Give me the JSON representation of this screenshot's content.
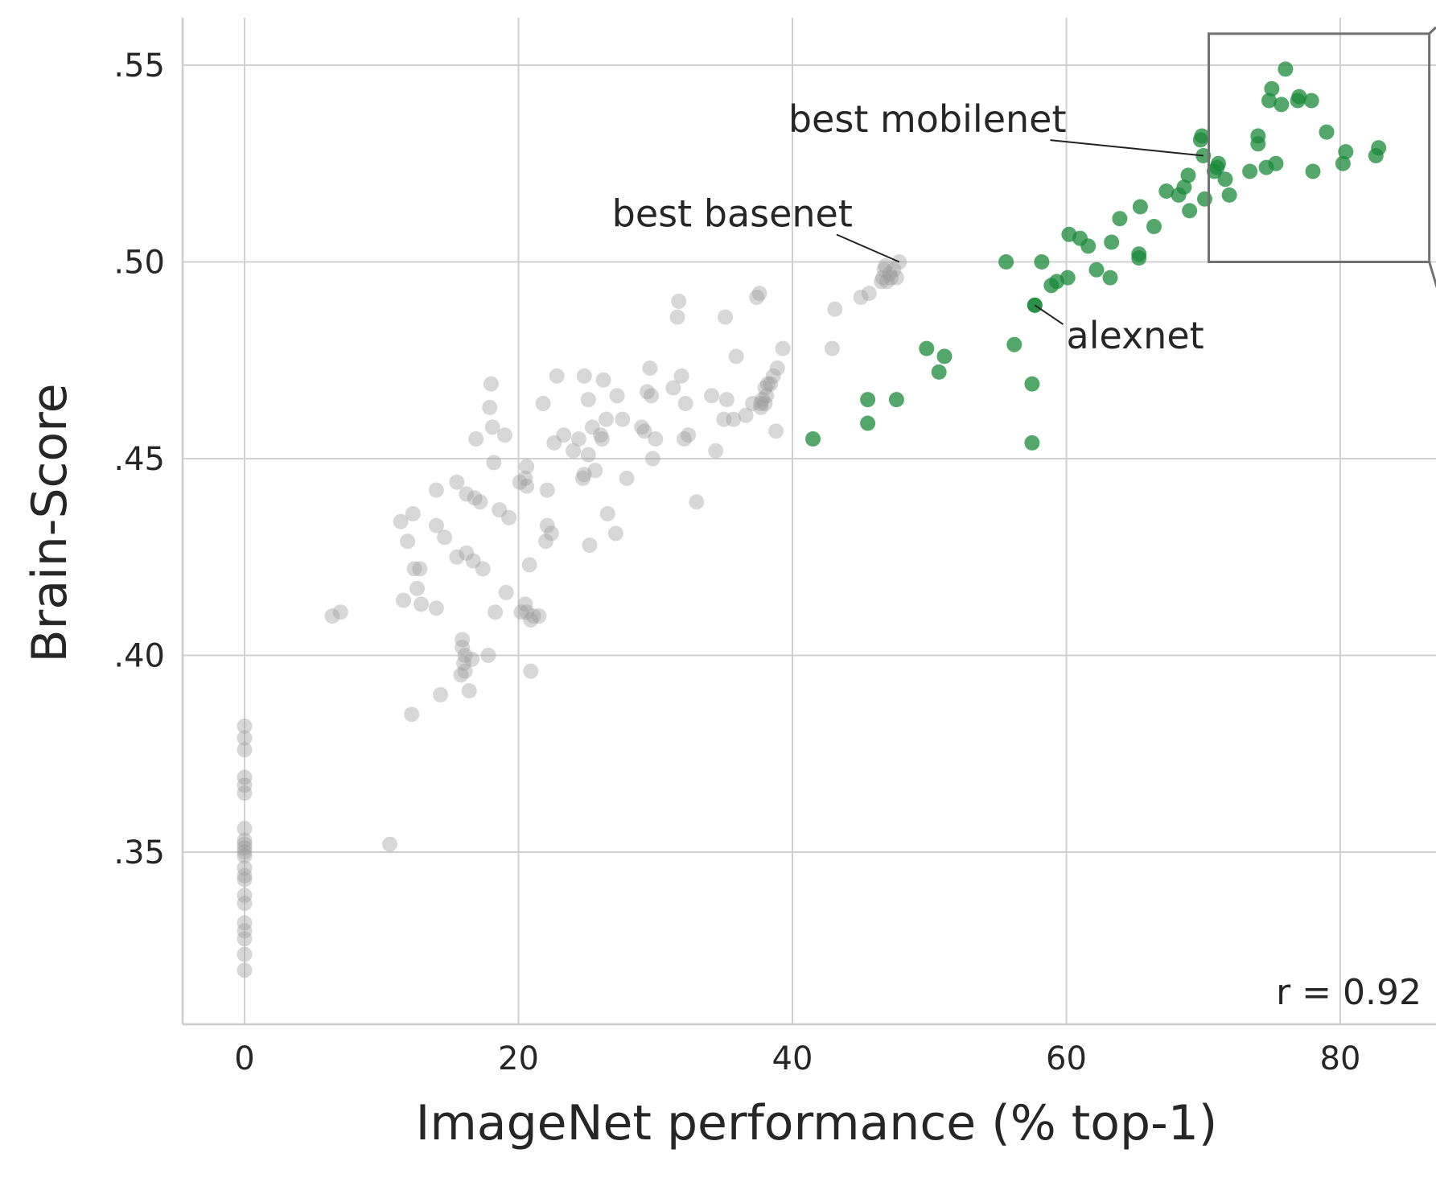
{
  "chart_data": {
    "type": "scatter",
    "xlabel": "ImageNet performance (% top-1)",
    "ylabel": "Brain-Score",
    "xlim": [
      -5,
      87
    ],
    "ylim": [
      0.306,
      0.562
    ],
    "xticks": [
      0,
      20,
      40,
      60,
      80
    ],
    "xtick_labels": [
      "0",
      "20",
      "40",
      "60",
      "80"
    ],
    "yticks": [
      0.35,
      0.4,
      0.45,
      0.5,
      0.55
    ],
    "ytick_labels": [
      ".35",
      ".40",
      ".45",
      ".50",
      ".55"
    ],
    "grid": true,
    "colors": {
      "gray_series": "#9a9a9a",
      "green_series": "#1a8a3a",
      "grid": "#d0d0d0",
      "zoom_box": "#707070"
    },
    "stat_label": "r = 0.92",
    "series": [
      {
        "color": "#9a9a9a",
        "opacity": 0.4,
        "points": [
          [
            0,
            0.382
          ],
          [
            0,
            0.379
          ],
          [
            0,
            0.376
          ],
          [
            0,
            0.369
          ],
          [
            0,
            0.367
          ],
          [
            0,
            0.365
          ],
          [
            0,
            0.356
          ],
          [
            0,
            0.353
          ],
          [
            0,
            0.352
          ],
          [
            0,
            0.351
          ],
          [
            0,
            0.35
          ],
          [
            0,
            0.349
          ],
          [
            0,
            0.346
          ],
          [
            0,
            0.344
          ],
          [
            0,
            0.343
          ],
          [
            0,
            0.339
          ],
          [
            0,
            0.337
          ],
          [
            0,
            0.332
          ],
          [
            0,
            0.33
          ],
          [
            0,
            0.328
          ],
          [
            0,
            0.324
          ],
          [
            0,
            0.32
          ],
          [
            6.4,
            0.41
          ],
          [
            7.0,
            0.411
          ],
          [
            10.6,
            0.352
          ],
          [
            11.4,
            0.434
          ],
          [
            11.6,
            0.414
          ],
          [
            11.9,
            0.429
          ],
          [
            12.2,
            0.385
          ],
          [
            12.3,
            0.436
          ],
          [
            12.4,
            0.422
          ],
          [
            12.6,
            0.417
          ],
          [
            12.8,
            0.422
          ],
          [
            12.9,
            0.413
          ],
          [
            14.0,
            0.412
          ],
          [
            14.0,
            0.442
          ],
          [
            14.0,
            0.433
          ],
          [
            14.3,
            0.39
          ],
          [
            14.6,
            0.43
          ],
          [
            15.5,
            0.425
          ],
          [
            15.5,
            0.444
          ],
          [
            15.8,
            0.395
          ],
          [
            15.9,
            0.404
          ],
          [
            15.9,
            0.402
          ],
          [
            16.0,
            0.398
          ],
          [
            16.1,
            0.396
          ],
          [
            16.1,
            0.4
          ],
          [
            16.2,
            0.426
          ],
          [
            16.2,
            0.441
          ],
          [
            16.4,
            0.391
          ],
          [
            16.6,
            0.399
          ],
          [
            16.7,
            0.424
          ],
          [
            16.8,
            0.44
          ],
          [
            16.9,
            0.455
          ],
          [
            17.2,
            0.439
          ],
          [
            17.4,
            0.422
          ],
          [
            17.8,
            0.4
          ],
          [
            17.9,
            0.463
          ],
          [
            18.0,
            0.469
          ],
          [
            18.1,
            0.458
          ],
          [
            18.2,
            0.449
          ],
          [
            18.3,
            0.411
          ],
          [
            18.6,
            0.437
          ],
          [
            19.0,
            0.456
          ],
          [
            19.1,
            0.416
          ],
          [
            19.3,
            0.435
          ],
          [
            20.1,
            0.444
          ],
          [
            20.2,
            0.411
          ],
          [
            20.5,
            0.445
          ],
          [
            20.5,
            0.413
          ],
          [
            20.6,
            0.448
          ],
          [
            20.6,
            0.411
          ],
          [
            20.6,
            0.443
          ],
          [
            20.8,
            0.423
          ],
          [
            20.9,
            0.409
          ],
          [
            20.9,
            0.396
          ],
          [
            21.1,
            0.41
          ],
          [
            21.5,
            0.41
          ],
          [
            21.8,
            0.464
          ],
          [
            22.0,
            0.429
          ],
          [
            22.1,
            0.433
          ],
          [
            22.1,
            0.442
          ],
          [
            22.4,
            0.431
          ],
          [
            22.6,
            0.454
          ],
          [
            22.8,
            0.471
          ],
          [
            23.3,
            0.456
          ],
          [
            24.0,
            0.452
          ],
          [
            24.4,
            0.455
          ],
          [
            24.7,
            0.445
          ],
          [
            24.8,
            0.446
          ],
          [
            24.8,
            0.471
          ],
          [
            25.1,
            0.451
          ],
          [
            25.1,
            0.465
          ],
          [
            25.2,
            0.428
          ],
          [
            25.4,
            0.458
          ],
          [
            25.6,
            0.447
          ],
          [
            26.0,
            0.456
          ],
          [
            26.1,
            0.455
          ],
          [
            26.2,
            0.47
          ],
          [
            26.4,
            0.46
          ],
          [
            26.5,
            0.436
          ],
          [
            27.1,
            0.431
          ],
          [
            27.2,
            0.466
          ],
          [
            27.6,
            0.46
          ],
          [
            27.9,
            0.445
          ],
          [
            29.0,
            0.458
          ],
          [
            29.2,
            0.457
          ],
          [
            29.4,
            0.467
          ],
          [
            29.6,
            0.473
          ],
          [
            29.7,
            0.466
          ],
          [
            29.8,
            0.45
          ],
          [
            30.0,
            0.455
          ],
          [
            31.3,
            0.468
          ],
          [
            31.6,
            0.486
          ],
          [
            31.7,
            0.49
          ],
          [
            31.9,
            0.471
          ],
          [
            32.1,
            0.455
          ],
          [
            32.2,
            0.464
          ],
          [
            32.4,
            0.456
          ],
          [
            33.0,
            0.439
          ],
          [
            34.1,
            0.466
          ],
          [
            34.4,
            0.452
          ],
          [
            35.0,
            0.46
          ],
          [
            35.1,
            0.486
          ],
          [
            35.2,
            0.465
          ],
          [
            35.7,
            0.46
          ],
          [
            35.9,
            0.476
          ],
          [
            36.6,
            0.461
          ],
          [
            37.1,
            0.464
          ],
          [
            37.4,
            0.491
          ],
          [
            37.6,
            0.492
          ],
          [
            37.7,
            0.463
          ],
          [
            37.7,
            0.464
          ],
          [
            37.8,
            0.465
          ],
          [
            38.0,
            0.464
          ],
          [
            38.0,
            0.468
          ],
          [
            38.1,
            0.466
          ],
          [
            38.2,
            0.469
          ],
          [
            38.4,
            0.469
          ],
          [
            38.6,
            0.471
          ],
          [
            38.8,
            0.457
          ],
          [
            38.9,
            0.473
          ],
          [
            39.3,
            0.478
          ],
          [
            42.9,
            0.478
          ],
          [
            43.1,
            0.488
          ],
          [
            45.0,
            0.491
          ],
          [
            45.6,
            0.492
          ],
          [
            46.5,
            0.495
          ],
          [
            46.6,
            0.496
          ],
          [
            46.7,
            0.498
          ],
          [
            46.8,
            0.499
          ],
          [
            46.9,
            0.495
          ],
          [
            47.1,
            0.497
          ],
          [
            47.2,
            0.496
          ],
          [
            47.4,
            0.498
          ],
          [
            47.6,
            0.496
          ],
          [
            47.8,
            0.5
          ]
        ]
      },
      {
        "color": "#1a8a3a",
        "opacity": 0.75,
        "points": [
          [
            41.5,
            0.455
          ],
          [
            45.5,
            0.465
          ],
          [
            45.5,
            0.459
          ],
          [
            47.6,
            0.465
          ],
          [
            49.8,
            0.478
          ],
          [
            50.7,
            0.472
          ],
          [
            51.1,
            0.476
          ],
          [
            55.6,
            0.5
          ],
          [
            56.2,
            0.479
          ],
          [
            57.5,
            0.469
          ],
          [
            57.5,
            0.454
          ],
          [
            57.7,
            0.489
          ],
          [
            57.7,
            0.489
          ],
          [
            58.2,
            0.5
          ],
          [
            58.9,
            0.494
          ],
          [
            59.3,
            0.495
          ],
          [
            60.1,
            0.496
          ],
          [
            60.2,
            0.507
          ],
          [
            61.0,
            0.506
          ],
          [
            61.6,
            0.504
          ],
          [
            62.2,
            0.498
          ],
          [
            63.2,
            0.496
          ],
          [
            63.3,
            0.505
          ],
          [
            63.9,
            0.511
          ],
          [
            65.3,
            0.502
          ],
          [
            65.3,
            0.501
          ],
          [
            65.4,
            0.514
          ],
          [
            66.4,
            0.509
          ],
          [
            67.3,
            0.518
          ],
          [
            68.2,
            0.517
          ],
          [
            68.6,
            0.519
          ],
          [
            68.9,
            0.522
          ],
          [
            69.0,
            0.513
          ],
          [
            69.8,
            0.531
          ],
          [
            69.9,
            0.532
          ],
          [
            70.0,
            0.527
          ],
          [
            70.1,
            0.516
          ],
          [
            70.8,
            0.523
          ],
          [
            71.0,
            0.524
          ],
          [
            71.1,
            0.525
          ],
          [
            71.6,
            0.521
          ],
          [
            71.9,
            0.517
          ],
          [
            73.4,
            0.523
          ],
          [
            74.0,
            0.53
          ],
          [
            74.0,
            0.532
          ],
          [
            74.6,
            0.524
          ],
          [
            74.8,
            0.541
          ],
          [
            75.0,
            0.544
          ],
          [
            75.3,
            0.525
          ],
          [
            75.7,
            0.54
          ],
          [
            76.0,
            0.549
          ],
          [
            76.9,
            0.541
          ],
          [
            77.0,
            0.542
          ],
          [
            77.9,
            0.541
          ],
          [
            78.0,
            0.523
          ],
          [
            79.0,
            0.533
          ],
          [
            80.2,
            0.525
          ],
          [
            80.4,
            0.528
          ],
          [
            82.6,
            0.527
          ],
          [
            82.8,
            0.529
          ]
        ]
      }
    ],
    "annotations": [
      {
        "text": "best mobilenet",
        "point": [
          70.0,
          0.527
        ],
        "text_pos": [
          60.0,
          0.533
        ],
        "anchor": "end"
      },
      {
        "text": "best basenet",
        "point": [
          47.8,
          0.5
        ],
        "text_pos": [
          44.4,
          0.509
        ],
        "anchor": "end"
      },
      {
        "text": "alexnet",
        "point": [
          57.7,
          0.489
        ],
        "text_pos": [
          60.0,
          0.478
        ],
        "anchor": "start"
      }
    ],
    "zoom_box": {
      "x": [
        70.4,
        86.5
      ],
      "y": [
        0.5,
        0.558
      ]
    }
  }
}
